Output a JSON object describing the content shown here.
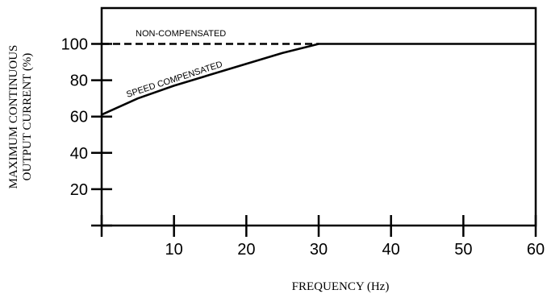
{
  "chart_data": {
    "type": "line",
    "title": "",
    "xlabel": "FREQUENCY (Hz)",
    "ylabel_lines": [
      "MAXIMUM CONTINUOUS",
      "OUTPUT CURRENT (%)"
    ],
    "xlim": [
      0,
      60
    ],
    "ylim": [
      0,
      120
    ],
    "xticks": [
      0,
      10,
      20,
      30,
      40,
      50,
      60
    ],
    "xtick_labels": [
      "",
      "10",
      "20",
      "30",
      "40",
      "50",
      "60"
    ],
    "yticks": [
      0,
      20,
      40,
      60,
      80,
      100
    ],
    "ytick_labels": [
      "",
      "20",
      "40",
      "60",
      "80",
      "100"
    ],
    "grid": false,
    "series": [
      {
        "name": "NON-COMPENSATED",
        "style": "dashed",
        "x": [
          0,
          30
        ],
        "y": [
          100,
          100
        ]
      },
      {
        "name": "SPEED COMPENSATED",
        "style": "solid",
        "x": [
          0,
          5,
          10,
          15,
          20,
          25,
          30,
          40,
          50,
          60
        ],
        "y": [
          61,
          70,
          77,
          83,
          89,
          95,
          100,
          100,
          100,
          100
        ]
      }
    ],
    "colors": {
      "line": "#000000",
      "background": "#ffffff"
    }
  }
}
